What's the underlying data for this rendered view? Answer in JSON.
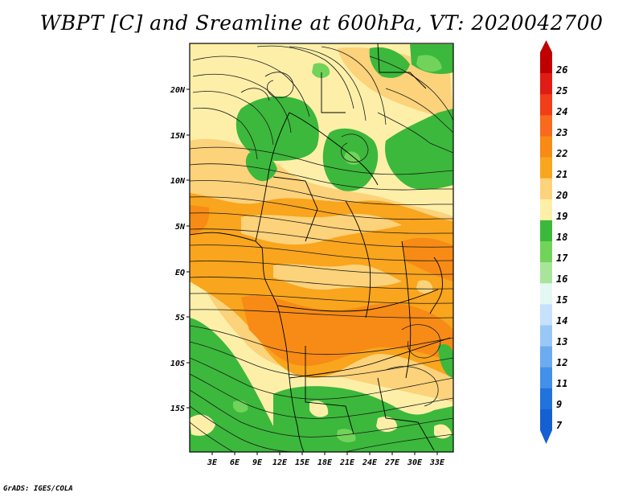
{
  "title": "WBPT [C] and Sreamline at 600hPa, VT: 2020042700",
  "credit": "GrADS: IGES/COLA",
  "map": {
    "x_ticks": [
      "3E",
      "6E",
      "9E",
      "12E",
      "15E",
      "18E",
      "21E",
      "24E",
      "27E",
      "30E",
      "33E"
    ],
    "y_ticks": [
      "20N",
      "15N",
      "10N",
      "5N",
      "EQ",
      "5S",
      "10S",
      "15S"
    ]
  },
  "colorbar": {
    "labels": [
      "26",
      "25",
      "24",
      "23",
      "22",
      "21",
      "20",
      "19",
      "18",
      "17",
      "16",
      "15",
      "14",
      "13",
      "12",
      "11",
      "9",
      "7"
    ],
    "colors": [
      "#c00000",
      "#e01c14",
      "#f23e18",
      "#f86a1e",
      "#f78b15",
      "#f9a51d",
      "#fcd27a",
      "#fdefa8",
      "#3cb83c",
      "#72d35a",
      "#a8e59a",
      "#e3f7f3",
      "#c6e1fb",
      "#9ac8f6",
      "#6cabef",
      "#4390e8",
      "#2173dc",
      "#1460d2"
    ]
  },
  "chart_data": {
    "type": "heatmap",
    "title": "WBPT [C] and Sreamline at 600hPa, VT: 2020042700",
    "variable": "Wet-bulb potential temperature (C) with 600hPa streamlines",
    "x_axis_ticks": [
      "3E",
      "6E",
      "9E",
      "12E",
      "15E",
      "18E",
      "21E",
      "24E",
      "27E",
      "30E",
      "33E"
    ],
    "y_axis_ticks": [
      "20N",
      "15N",
      "10N",
      "5N",
      "EQ",
      "5S",
      "10S",
      "15S"
    ],
    "color_levels": [
      "7",
      "9",
      "11",
      "12",
      "13",
      "14",
      "15",
      "16",
      "17",
      "18",
      "19",
      "20",
      "21",
      "22",
      "23",
      "24",
      "25",
      "26"
    ]
  }
}
